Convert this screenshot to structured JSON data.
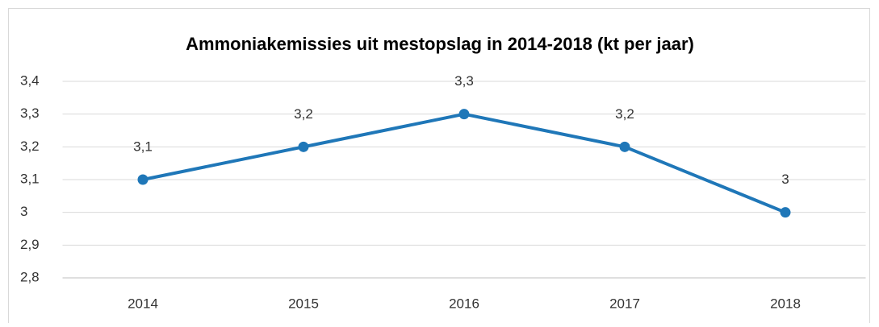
{
  "chart_data": {
    "type": "line",
    "title": "Ammoniakemissies uit mestopslag in 2014-2018 (kt per jaar)",
    "categories": [
      "2014",
      "2015",
      "2016",
      "2017",
      "2018"
    ],
    "series": [
      {
        "name": "Ammoniakemissies",
        "color": "#1f77b8",
        "values": [
          3.1,
          3.2,
          3.3,
          3.2,
          3.0
        ],
        "value_labels": [
          "3,1",
          "3,2",
          "3,3",
          "3,2",
          "3"
        ]
      }
    ],
    "ylim": [
      2.8,
      3.4
    ],
    "yticks": [
      {
        "value": 2.8,
        "label": "2,8"
      },
      {
        "value": 2.9,
        "label": "2,9"
      },
      3,
      {
        "value": 3.1,
        "label": "3,1"
      },
      {
        "value": 3.2,
        "label": "3,2"
      },
      {
        "value": 3.3,
        "label": "3,3"
      },
      {
        "value": 3.4,
        "label": "3,4"
      }
    ],
    "grid": true
  }
}
